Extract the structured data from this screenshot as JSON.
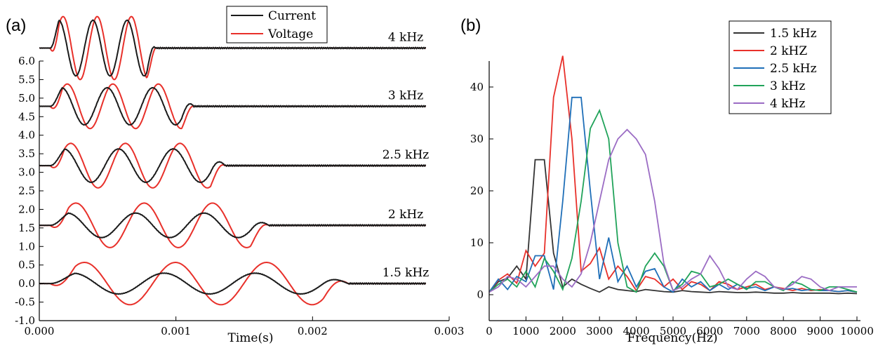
{
  "panels": {
    "a": {
      "label": "(a)",
      "xlabel": "Time(s)",
      "x_ticks": [
        "0.000",
        "0.001",
        "0.002",
        "0.003"
      ],
      "y_ticks": [
        "6.0",
        "5.5",
        "5.0",
        "4.5",
        "4.0",
        "3.5",
        "3.0",
        "2.5",
        "2.0",
        "1.5",
        "1.0",
        "0.5",
        "0.0",
        "-0.5",
        "-1.0"
      ],
      "legend": [
        "Current",
        "Voltage"
      ],
      "trace_labels": [
        "4 kHz",
        "3 kHz",
        "2.5 kHz",
        "2 kHz",
        "1.5 kHz"
      ]
    },
    "b": {
      "label": "(b)",
      "xlabel": "Frequency(Hz)",
      "x_ticks": [
        "0",
        "1000",
        "2000",
        "3000",
        "4000",
        "5000",
        "6000",
        "7000",
        "8000",
        "9000",
        "10000"
      ],
      "y_ticks": [
        "40",
        "30",
        "20",
        "10",
        "0"
      ],
      "legend": [
        "1.5 kHz",
        "2 kHZ",
        "2.5 kHz",
        "3 kHz",
        "4 kHz"
      ]
    }
  },
  "colors": {
    "current": "#1a1a1a",
    "voltage": "#e8302a",
    "s15": "#333333",
    "s2": "#e8302a",
    "s25": "#1f6fb8",
    "s3": "#21a35a",
    "s4": "#9b6cc4"
  },
  "chart_data": [
    {
      "type": "line",
      "title": "",
      "xlabel": "Time(s)",
      "ylabel": "",
      "xlim": [
        0,
        0.003
      ],
      "ylim": [
        -1.0,
        6.0
      ],
      "grid": false,
      "legend_position": "top-center",
      "series": [
        {
          "name": "Current",
          "note_traces": [
            "4 kHz",
            "3 kHz",
            "2.5 kHz",
            "2 kHz",
            "1.5 kHz"
          ]
        },
        {
          "name": "Voltage",
          "note_traces": [
            "4 kHz",
            "3 kHz",
            "2.5 kHz",
            "2 kHz",
            "1.5 kHz"
          ]
        }
      ],
      "traces": [
        {
          "label": "4 kHz",
          "baseline": 6.35,
          "pulse_start": 8e-05,
          "pulse_end": 0.00085,
          "freq_hz": 4000,
          "current_amp": 0.75,
          "voltage_amp": 0.85,
          "phase_shift": 0.25
        },
        {
          "label": "3 kHz",
          "baseline": 4.78,
          "pulse_start": 8e-05,
          "pulse_end": 0.00113,
          "freq_hz": 3000,
          "current_amp": 0.5,
          "voltage_amp": 0.6,
          "phase_shift": 0.25
        },
        {
          "label": "2.5 kHz",
          "baseline": 3.18,
          "pulse_start": 8e-05,
          "pulse_end": 0.00136,
          "freq_hz": 2500,
          "current_amp": 0.45,
          "voltage_amp": 0.6,
          "phase_shift": 0.25
        },
        {
          "label": "2 kHz",
          "baseline": 1.57,
          "pulse_start": 8e-05,
          "pulse_end": 0.00168,
          "freq_hz": 2000,
          "current_amp": 0.33,
          "voltage_amp": 0.6,
          "phase_shift": 0.25
        },
        {
          "label": "1.5 kHz",
          "baseline": 0.0,
          "pulse_start": 8e-05,
          "pulse_end": 0.00226,
          "freq_hz": 1500,
          "current_amp": 0.28,
          "voltage_amp": 0.57,
          "phase_shift": 0.25
        }
      ]
    },
    {
      "type": "line",
      "title": "",
      "xlabel": "Frequency(Hz)",
      "ylabel": "",
      "xlim": [
        0,
        10000
      ],
      "ylim": [
        -5,
        45
      ],
      "grid": false,
      "legend_position": "top-right",
      "x": [
        0,
        250,
        500,
        750,
        1000,
        1250,
        1500,
        1750,
        2000,
        2250,
        2500,
        2750,
        3000,
        3250,
        3500,
        3750,
        4000,
        4250,
        4500,
        4750,
        5000,
        5250,
        5500,
        5750,
        6000,
        6250,
        6500,
        6750,
        7000,
        7250,
        7500,
        7750,
        8000,
        8250,
        8500,
        8750,
        9000,
        9250,
        9500,
        9750,
        10000
      ],
      "series": [
        {
          "name": "1.5 kHz",
          "values": [
            0.5,
            2.5,
            3.2,
            5.5,
            3.0,
            26,
            26,
            8,
            1.5,
            3,
            2,
            1.2,
            0.5,
            1.5,
            1,
            0.8,
            0.6,
            1,
            0.8,
            0.6,
            0.5,
            0.8,
            0.6,
            0.5,
            0.4,
            0.6,
            0.5,
            0.4,
            0.4,
            0.5,
            0.4,
            0.3,
            0.3,
            0.4,
            0.3,
            0.3,
            0.3,
            0.3,
            0.2,
            0.3,
            0.2
          ]
        },
        {
          "name": "2 kHZ",
          "values": [
            0.5,
            2.8,
            4,
            2.2,
            8.5,
            5.5,
            8,
            38,
            46,
            30,
            4.5,
            6,
            9,
            3,
            5.5,
            3.5,
            0.8,
            3.5,
            3,
            1.5,
            3,
            1,
            2.5,
            2,
            0.8,
            2.5,
            2,
            1,
            1.5,
            2,
            1,
            1.5,
            1.2,
            0.8,
            1.2,
            0.8,
            1,
            0.8,
            0.6,
            0.8,
            0.5
          ]
        },
        {
          "name": "2.5 kHz",
          "values": [
            0.5,
            3,
            1,
            3.5,
            2.5,
            7.5,
            7.5,
            1,
            18,
            38,
            38,
            20,
            3,
            11,
            2.5,
            5.5,
            1.5,
            4.5,
            5,
            1.5,
            0.5,
            3,
            1.5,
            2.5,
            0.8,
            2,
            1,
            2,
            1.2,
            1.5,
            0.8,
            1.5,
            1,
            1.2,
            0.8,
            1,
            0.8,
            0.8,
            0.6,
            0.8,
            0.5
          ]
        },
        {
          "name": "3 kHz",
          "values": [
            0.5,
            2,
            3,
            1.5,
            4.5,
            1.5,
            7,
            4.5,
            1,
            7,
            18,
            32,
            35.5,
            30,
            10,
            1.5,
            0.5,
            5.5,
            8,
            5.5,
            0.8,
            2,
            4.5,
            4,
            1.5,
            2,
            3,
            2,
            1,
            2.5,
            2.5,
            1.5,
            0.8,
            2.5,
            2,
            1,
            0.8,
            1.5,
            1.5,
            1,
            0.5
          ]
        },
        {
          "name": "4 kHz",
          "values": [
            0.5,
            1.5,
            3.5,
            3,
            1.5,
            3.5,
            5.5,
            5.5,
            3,
            1.5,
            4,
            10,
            18,
            26,
            30,
            31.8,
            30,
            27,
            18,
            6,
            0.8,
            1.5,
            3,
            4,
            7.5,
            5,
            1.5,
            1,
            3,
            4.5,
            3.5,
            1.5,
            1,
            2,
            3.5,
            3,
            1.5,
            0.8,
            1.5,
            1.5,
            1.5
          ]
        }
      ]
    }
  ]
}
